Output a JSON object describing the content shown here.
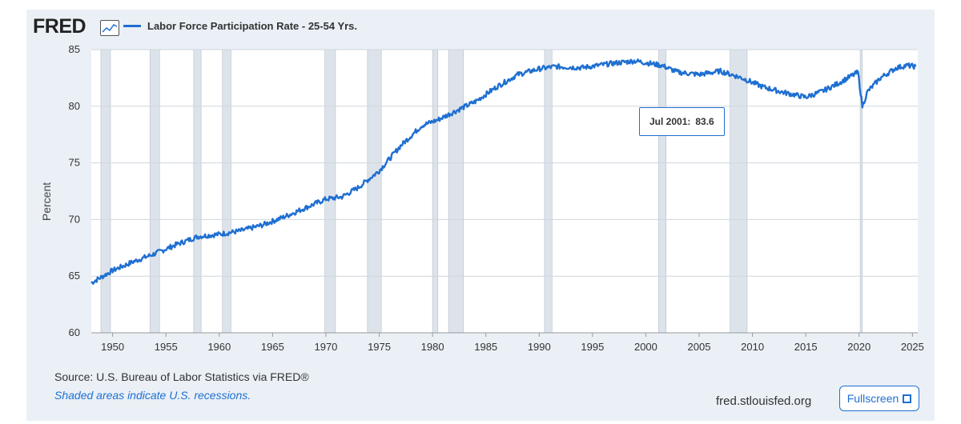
{
  "header": {
    "logo_text": "FRED",
    "logo_icon": "line-chart-icon",
    "series_title": "Labor Force Participation Rate - 25-54 Yrs."
  },
  "tooltip": {
    "date": "Jul 2001:",
    "value": "83.6"
  },
  "footer": {
    "source": "Source: U.S. Bureau of Labor Statistics via FRED®",
    "recession_note": "Shaded areas indicate U.S. recessions.",
    "site": "fred.stlouisfed.org",
    "fullscreen_label": "Fullscreen",
    "fullscreen_icon": "expand-icon"
  },
  "colors": {
    "line": "#1f6fd1",
    "recession": "#dde3ea",
    "grid": "#cfd6de",
    "panel_bg": "#eaf0f6"
  },
  "chart_data": {
    "type": "line",
    "title": "Labor Force Participation Rate - 25-54 Yrs.",
    "xlabel": "",
    "ylabel": "Percent",
    "xlim": [
      1948,
      2025.5
    ],
    "ylim": [
      60,
      85
    ],
    "x_ticks": [
      "1950",
      "1955",
      "1960",
      "1965",
      "1970",
      "1975",
      "1980",
      "1985",
      "1990",
      "1995",
      "2000",
      "2005",
      "2010",
      "2015",
      "2020",
      "2025"
    ],
    "y_ticks": [
      "60",
      "65",
      "70",
      "75",
      "80",
      "85"
    ],
    "grid": true,
    "recessions": [
      [
        1948.9,
        1949.8
      ],
      [
        1953.5,
        1954.4
      ],
      [
        1957.6,
        1958.3
      ],
      [
        1960.3,
        1961.1
      ],
      [
        1969.9,
        1970.9
      ],
      [
        1973.9,
        1975.2
      ],
      [
        1980.0,
        1980.5
      ],
      [
        1981.5,
        1982.9
      ],
      [
        1990.5,
        1991.2
      ],
      [
        2001.2,
        2001.9
      ],
      [
        2007.9,
        2009.5
      ],
      [
        2020.1,
        2020.3
      ]
    ],
    "series": [
      {
        "name": "Labor Force Participation Rate - 25-54 Yrs.",
        "x": [
          1948.0,
          1950.0,
          1952.0,
          1954.0,
          1956.0,
          1958.0,
          1960.0,
          1962.0,
          1964.0,
          1966.0,
          1968.0,
          1970.0,
          1971.5,
          1973.0,
          1975.0,
          1977.0,
          1979.0,
          1980.5,
          1982.0,
          1984.0,
          1986.0,
          1988.0,
          1990.0,
          1991.5,
          1994.0,
          1997.0,
          1999.0,
          2001.5,
          2003.0,
          2005.0,
          2007.0,
          2009.0,
          2011.0,
          2013.0,
          2015.0,
          2016.5,
          2018.0,
          2019.9,
          2020.3,
          2020.8,
          2022.0,
          2023.5,
          2024.5,
          2025.3
        ],
        "y": [
          64.4,
          65.5,
          66.3,
          67.0,
          67.8,
          68.5,
          68.7,
          69.0,
          69.5,
          70.2,
          71.0,
          71.8,
          72.0,
          72.8,
          74.3,
          76.5,
          78.3,
          78.8,
          79.5,
          80.4,
          81.7,
          82.8,
          83.3,
          83.5,
          83.4,
          83.8,
          84.0,
          83.6,
          83.0,
          82.8,
          83.1,
          82.5,
          81.7,
          81.2,
          80.8,
          81.3,
          82.0,
          83.0,
          80.0,
          81.3,
          82.5,
          83.4,
          83.6,
          83.5
        ]
      }
    ],
    "annotation": {
      "x": 2001.5,
      "y": 83.6,
      "label": "Jul 2001:  83.6"
    }
  }
}
